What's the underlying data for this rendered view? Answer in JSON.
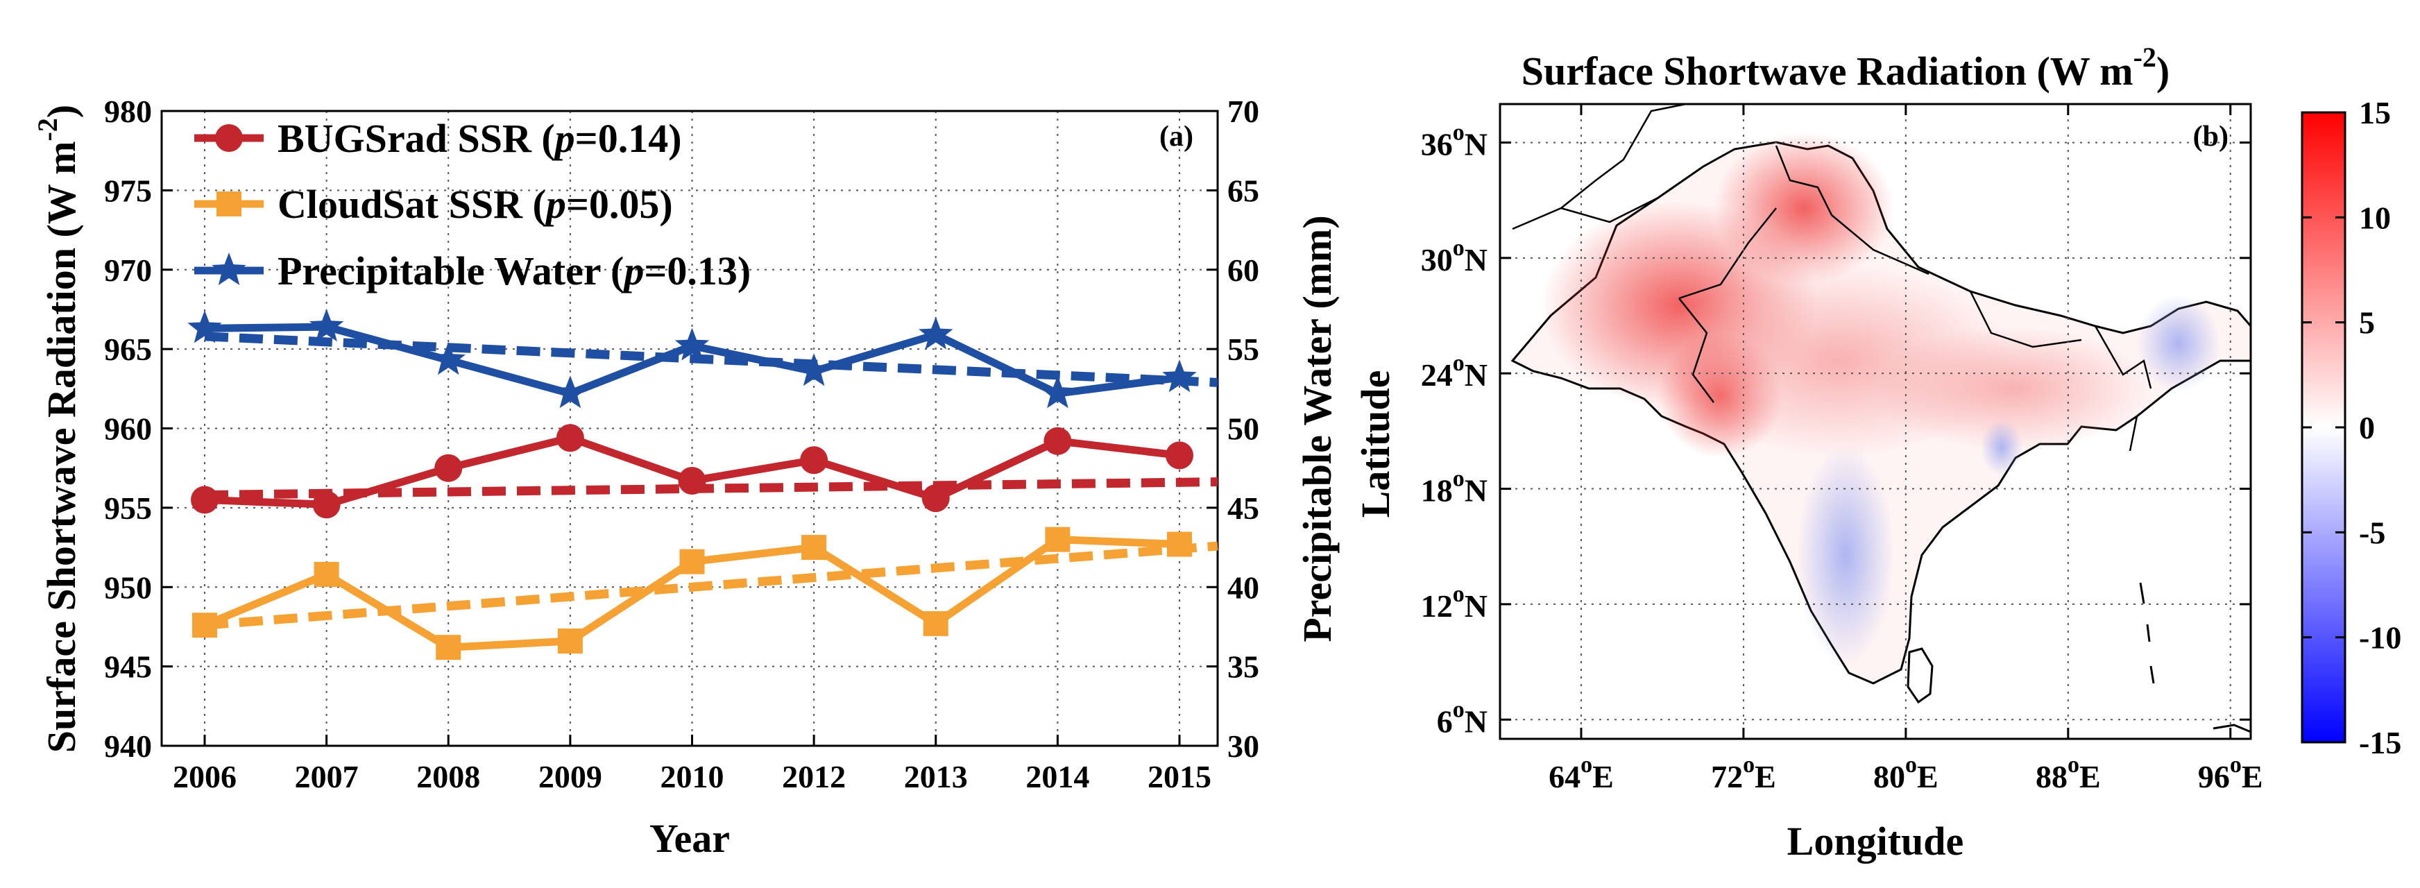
{
  "chart_data": [
    {
      "type": "line",
      "panel_label": "(a)",
      "xlabel": "Year",
      "ylabel_left": "Surface Shortwave Radiation (W m",
      "ylabel_left_exp": "-2",
      "ylabel_left_close": ")",
      "ylabel_right": "Precipitable Water (mm)",
      "categories": [
        "2006",
        "2007",
        "2008",
        "2009",
        "2010",
        "2012",
        "2013",
        "2014",
        "2015"
      ],
      "ylim_left": [
        940,
        980
      ],
      "yticks_left": [
        "940",
        "945",
        "950",
        "955",
        "960",
        "965",
        "970",
        "975",
        "980"
      ],
      "ylim_right": [
        30,
        70
      ],
      "yticks_right": [
        "30",
        "35",
        "40",
        "45",
        "50",
        "55",
        "60",
        "65",
        "70"
      ],
      "grid": true,
      "legend_position": "top-left",
      "series": [
        {
          "name": "BUGSrad SSR",
          "legend_prefix": "BUGSrad SSR (",
          "legend_p": "p",
          "legend_value": "=0.14)",
          "axis": "left",
          "color": "#c1272d",
          "marker": "circle",
          "values": [
            955.5,
            955.2,
            957.5,
            959.4,
            956.7,
            958.0,
            955.6,
            959.2,
            958.3
          ],
          "trend": [
            955.8,
            956.6
          ]
        },
        {
          "name": "CloudSat SSR",
          "legend_prefix": "CloudSat SSR (",
          "legend_p": "p",
          "legend_value": "=0.05)",
          "axis": "left",
          "color": "#f5a133",
          "marker": "square",
          "values": [
            947.6,
            950.8,
            946.2,
            946.6,
            951.6,
            952.5,
            947.7,
            953.0,
            952.7
          ],
          "trend": [
            947.6,
            952.4
          ]
        },
        {
          "name": "Precipitable Water",
          "legend_prefix": "Precipitable Water (",
          "legend_p": "p",
          "legend_value": "=0.13)",
          "axis": "right",
          "color": "#1f4fa3",
          "marker": "star",
          "values": [
            56.3,
            56.4,
            54.3,
            52.2,
            55.2,
            53.6,
            55.9,
            52.2,
            53.2
          ],
          "trend": [
            55.8,
            53.0
          ]
        }
      ]
    },
    {
      "type": "heatmap",
      "panel_label": "(b)",
      "title": "Surface Shortwave Radiation (W m",
      "title_exp": "-2",
      "title_close": ")",
      "xlabel": "Longitude",
      "ylabel": "Latitude",
      "xlim": [
        60,
        97
      ],
      "ylim": [
        5,
        38
      ],
      "lon_ticks": [
        {
          "value": 64,
          "num": "64",
          "deg": "o",
          "hem": "E"
        },
        {
          "value": 72,
          "num": "72",
          "deg": "o",
          "hem": "E"
        },
        {
          "value": 80,
          "num": "80",
          "deg": "o",
          "hem": "E"
        },
        {
          "value": 88,
          "num": "88",
          "deg": "o",
          "hem": "E"
        },
        {
          "value": 96,
          "num": "96",
          "deg": "o",
          "hem": "E"
        }
      ],
      "lat_ticks": [
        {
          "value": 6,
          "num": "6",
          "deg": "o",
          "hem": "N"
        },
        {
          "value": 12,
          "num": "12",
          "deg": "o",
          "hem": "N"
        },
        {
          "value": 18,
          "num": "18",
          "deg": "o",
          "hem": "N"
        },
        {
          "value": 24,
          "num": "24",
          "deg": "o",
          "hem": "N"
        },
        {
          "value": 30,
          "num": "30",
          "deg": "o",
          "hem": "N"
        },
        {
          "value": 36,
          "num": "36",
          "deg": "o",
          "hem": "N"
        }
      ],
      "colorbar": {
        "range": [
          -15,
          15
        ],
        "ticks": [
          "-15",
          "-10",
          "-5",
          "0",
          "5",
          "10",
          "15"
        ],
        "low_color": "#0000ff",
        "mid_color": "#ffffff",
        "high_color": "#ff0000"
      }
    }
  ]
}
